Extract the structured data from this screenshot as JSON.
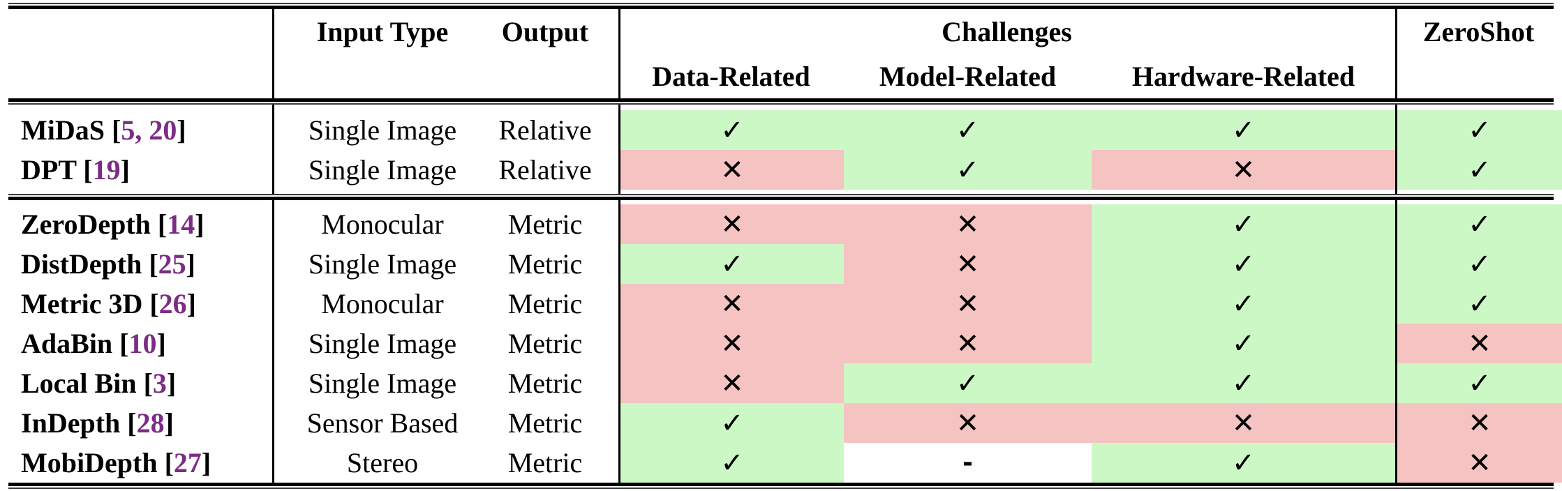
{
  "table": {
    "headers": {
      "method_column": "",
      "input_type": "Input Type",
      "output": "Output",
      "challenges": "Challenges",
      "sub": [
        "Data-Related",
        "Model-Related",
        "Hardware-Related"
      ],
      "zeroshot": "ZeroShot"
    },
    "marks": {
      "check": "✓",
      "cross": "✕",
      "dash": "-"
    },
    "colors": {
      "green": "#CCF8C6",
      "red": "#F5C4C2",
      "white": "#FFFFFF",
      "cite": "#7C2C86"
    },
    "rows": [
      {
        "group": 1,
        "method": "MiDaS",
        "cites": [
          "5",
          "20"
        ],
        "input": "Single Image",
        "output": "Relative",
        "data": {
          "mark": "check",
          "bg": "green"
        },
        "model": {
          "mark": "check",
          "bg": "green"
        },
        "hardware": {
          "mark": "check",
          "bg": "green"
        },
        "zeroshot": {
          "mark": "check",
          "bg": "green"
        }
      },
      {
        "group": 1,
        "method": "DPT",
        "cites": [
          "19"
        ],
        "input": "Single Image",
        "output": "Relative",
        "data": {
          "mark": "cross",
          "bg": "red"
        },
        "model": {
          "mark": "check",
          "bg": "green"
        },
        "hardware": {
          "mark": "cross",
          "bg": "red"
        },
        "zeroshot": {
          "mark": "check",
          "bg": "green"
        }
      },
      {
        "group": 2,
        "method": "ZeroDepth",
        "cites": [
          "14"
        ],
        "input": "Monocular",
        "output": "Metric",
        "data": {
          "mark": "cross",
          "bg": "red"
        },
        "model": {
          "mark": "cross",
          "bg": "red"
        },
        "hardware": {
          "mark": "check",
          "bg": "green"
        },
        "zeroshot": {
          "mark": "check",
          "bg": "green"
        }
      },
      {
        "group": 2,
        "method": "DistDepth",
        "cites": [
          "25"
        ],
        "input": "Single Image",
        "output": "Metric",
        "data": {
          "mark": "check",
          "bg": "green"
        },
        "model": {
          "mark": "cross",
          "bg": "red"
        },
        "hardware": {
          "mark": "check",
          "bg": "green"
        },
        "zeroshot": {
          "mark": "check",
          "bg": "green"
        }
      },
      {
        "group": 2,
        "method": "Metric 3D",
        "cites": [
          "26"
        ],
        "input": "Monocular",
        "output": "Metric",
        "data": {
          "mark": "cross",
          "bg": "red"
        },
        "model": {
          "mark": "cross",
          "bg": "red"
        },
        "hardware": {
          "mark": "check",
          "bg": "green"
        },
        "zeroshot": {
          "mark": "check",
          "bg": "green"
        }
      },
      {
        "group": 2,
        "method": "AdaBin",
        "cites": [
          "10"
        ],
        "input": "Single Image",
        "output": "Metric",
        "data": {
          "mark": "cross",
          "bg": "red"
        },
        "model": {
          "mark": "cross",
          "bg": "red"
        },
        "hardware": {
          "mark": "check",
          "bg": "green"
        },
        "zeroshot": {
          "mark": "cross",
          "bg": "red"
        }
      },
      {
        "group": 2,
        "method": "Local Bin",
        "cites": [
          "3"
        ],
        "input": "Single Image",
        "output": "Metric",
        "data": {
          "mark": "cross",
          "bg": "red"
        },
        "model": {
          "mark": "check",
          "bg": "green"
        },
        "hardware": {
          "mark": "check",
          "bg": "green"
        },
        "zeroshot": {
          "mark": "check",
          "bg": "green"
        }
      },
      {
        "group": 2,
        "method": "InDepth",
        "cites": [
          "28"
        ],
        "input": "Sensor Based",
        "output": "Metric",
        "data": {
          "mark": "check",
          "bg": "green"
        },
        "model": {
          "mark": "cross",
          "bg": "red"
        },
        "hardware": {
          "mark": "cross",
          "bg": "red"
        },
        "zeroshot": {
          "mark": "cross",
          "bg": "red"
        }
      },
      {
        "group": 2,
        "method": "MobiDepth",
        "cites": [
          "27"
        ],
        "input": "Stereo",
        "output": "Metric",
        "data": {
          "mark": "check",
          "bg": "green"
        },
        "model": {
          "mark": "dash",
          "bg": "white"
        },
        "hardware": {
          "mark": "check",
          "bg": "green"
        },
        "zeroshot": {
          "mark": "cross",
          "bg": "red"
        }
      }
    ]
  }
}
